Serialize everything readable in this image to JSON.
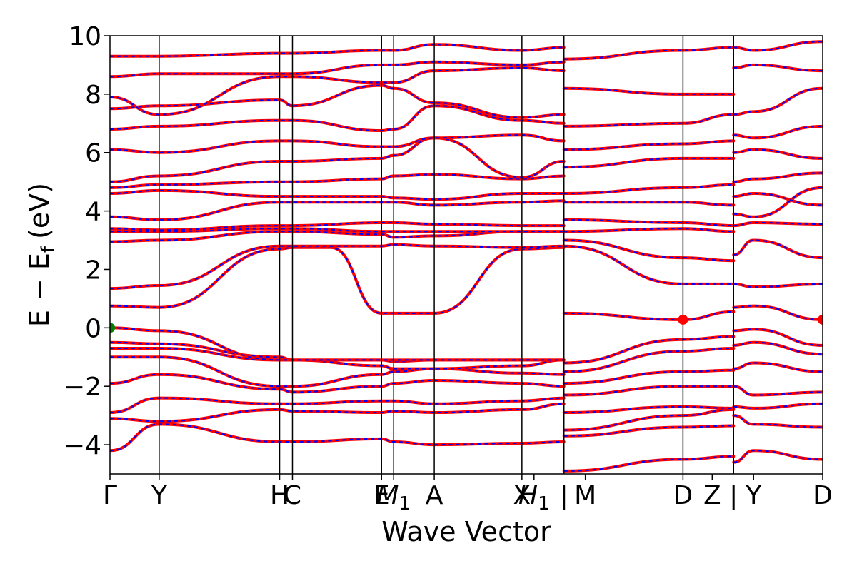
{
  "chart_data": {
    "type": "line",
    "title": "",
    "xlabel": "Wave Vector",
    "ylabel": "E − E",
    "ylabel_subscript": "f",
    "ylabel_unit": "(eV)",
    "ylim": [
      -5,
      10
    ],
    "y_ticks": [
      -4,
      -2,
      0,
      2,
      4,
      6,
      8,
      10
    ],
    "y_tick_labels": [
      "−4",
      "−2",
      "0",
      "2",
      "4",
      "6",
      "8",
      "10"
    ],
    "x_ticks": [
      {
        "label": "Γ",
        "pos": 0.0
      },
      {
        "label": "Y",
        "pos": 0.069
      },
      {
        "label": "H",
        "pos": 0.238
      },
      {
        "label": "C",
        "pos": 0.256
      },
      {
        "label": "E",
        "pos": 0.381
      },
      {
        "label": "M",
        "sub": "1",
        "pos": 0.398
      },
      {
        "label": "A",
        "pos": 0.455
      },
      {
        "label": "X",
        "pos": 0.578
      },
      {
        "label": "H",
        "sub": "1",
        "pos": 0.595
      },
      {
        "label": "|",
        "pos": 0.637
      },
      {
        "label": "M",
        "pos": 0.667
      },
      {
        "label": "D",
        "pos": 0.804
      },
      {
        "label": "Z",
        "pos": 0.845
      },
      {
        "label": "|",
        "pos": 0.875
      },
      {
        "label": "Y",
        "pos": 0.903
      },
      {
        "label": "D",
        "pos": 1.0
      }
    ],
    "band_dividers": [
      0.069,
      0.238,
      0.256,
      0.381,
      0.398,
      0.455,
      0.578,
      0.637,
      0.804,
      0.875
    ],
    "segment_breaks": [
      0.637,
      0.875
    ],
    "colors": {
      "spin_up": "#ff0000",
      "spin_down": "#0000ff",
      "vbm": "#008000",
      "cbm": "#ff0000",
      "divider": "#000000"
    },
    "markers": [
      {
        "type": "vbm",
        "x": 0.0,
        "y": 0.0
      },
      {
        "type": "cbm",
        "x": 0.804,
        "y": 0.28
      },
      {
        "type": "cbm",
        "x": 1.0,
        "y": 0.28
      }
    ],
    "series": [
      {
        "x": [
          0,
          0.069,
          0.238,
          0.256,
          0.381,
          0.398,
          0.455,
          0.578,
          0.637
        ],
        "y": [
          -4.2,
          -3.3,
          -3.9,
          -3.9,
          -3.8,
          -3.9,
          -4.0,
          -3.95,
          -3.9
        ]
      },
      {
        "x": [
          0,
          0.069,
          0.238,
          0.256,
          0.381,
          0.398,
          0.455,
          0.578,
          0.637
        ],
        "y": [
          -3.1,
          -3.2,
          -2.8,
          -2.85,
          -2.9,
          -2.85,
          -2.9,
          -2.8,
          -2.6
        ]
      },
      {
        "x": [
          0,
          0.069,
          0.238,
          0.256,
          0.381,
          0.398,
          0.455,
          0.578,
          0.637
        ],
        "y": [
          -2.9,
          -2.4,
          -2.6,
          -2.6,
          -2.5,
          -2.5,
          -2.6,
          -2.5,
          -2.4
        ]
      },
      {
        "x": [
          0,
          0.069,
          0.238,
          0.256,
          0.381,
          0.398,
          0.455,
          0.578,
          0.637
        ],
        "y": [
          -1.9,
          -1.6,
          -2.1,
          -2.2,
          -2.0,
          -1.9,
          -1.8,
          -1.9,
          -2.0
        ]
      },
      {
        "x": [
          0,
          0.069,
          0.238,
          0.256,
          0.381,
          0.398,
          0.455,
          0.578,
          0.637
        ],
        "y": [
          -1.0,
          -1.0,
          -2.0,
          -2.0,
          -1.6,
          -1.5,
          -1.4,
          -1.55,
          -1.6
        ]
      },
      {
        "x": [
          0,
          0.069,
          0.238,
          0.256,
          0.381,
          0.398,
          0.455,
          0.578,
          0.637
        ],
        "y": [
          -0.7,
          -0.7,
          -1.1,
          -1.1,
          -1.1,
          -1.15,
          -1.1,
          -1.1,
          -1.1
        ]
      },
      {
        "x": [
          0,
          0.069,
          0.238,
          0.256,
          0.381,
          0.398,
          0.455,
          0.578,
          0.637
        ],
        "y": [
          -0.5,
          -0.55,
          -1.0,
          -1.1,
          -1.3,
          -1.4,
          -1.4,
          -1.3,
          -1.1
        ]
      },
      {
        "x": [
          0,
          0.069,
          0.238,
          0.256,
          0.381,
          0.398,
          0.455,
          0.578,
          0.637
        ],
        "y": [
          0.0,
          -0.1,
          -1.1,
          -1.1,
          -1.1,
          -1.1,
          -1.1,
          -1.1,
          -1.1
        ]
      },
      {
        "x": [
          0,
          0.069,
          0.238,
          0.256,
          0.31,
          0.381,
          0.398,
          0.455,
          0.578,
          0.637
        ],
        "y": [
          0.75,
          0.7,
          2.7,
          2.75,
          2.75,
          0.5,
          0.5,
          0.5,
          2.7,
          2.75
        ]
      },
      {
        "x": [
          0,
          0.069,
          0.238,
          0.256,
          0.381,
          0.398,
          0.455,
          0.578,
          0.637
        ],
        "y": [
          1.35,
          1.45,
          2.8,
          2.8,
          2.8,
          2.85,
          2.8,
          2.75,
          2.8
        ]
      },
      {
        "x": [
          0,
          0.069,
          0.238,
          0.256,
          0.381,
          0.398,
          0.455,
          0.578,
          0.637
        ],
        "y": [
          2.95,
          3.0,
          3.3,
          3.3,
          3.2,
          3.1,
          3.15,
          3.3,
          3.3
        ]
      },
      {
        "x": [
          0,
          0.069,
          0.238,
          0.256,
          0.381,
          0.398,
          0.455,
          0.578,
          0.637
        ],
        "y": [
          3.3,
          3.3,
          3.4,
          3.4,
          3.3,
          3.3,
          3.3,
          3.3,
          3.3
        ]
      },
      {
        "x": [
          0,
          0.069,
          0.238,
          0.256,
          0.381,
          0.398,
          0.455,
          0.578,
          0.637
        ],
        "y": [
          3.4,
          3.35,
          3.5,
          3.5,
          3.6,
          3.6,
          3.55,
          3.5,
          3.5
        ]
      },
      {
        "x": [
          0,
          0.069,
          0.238,
          0.256,
          0.381,
          0.398,
          0.455,
          0.578,
          0.637
        ],
        "y": [
          3.8,
          3.7,
          4.3,
          4.3,
          4.3,
          4.3,
          4.2,
          4.3,
          4.35
        ]
      },
      {
        "x": [
          0,
          0.069,
          0.238,
          0.256,
          0.381,
          0.398,
          0.455,
          0.578,
          0.637
        ],
        "y": [
          4.6,
          4.7,
          4.5,
          4.5,
          4.5,
          4.45,
          4.4,
          4.6,
          4.6
        ]
      },
      {
        "x": [
          0,
          0.069,
          0.238,
          0.256,
          0.381,
          0.398,
          0.455,
          0.578,
          0.637
        ],
        "y": [
          4.8,
          4.9,
          5.0,
          5.0,
          5.1,
          5.2,
          5.25,
          5.1,
          5.2
        ]
      },
      {
        "x": [
          0,
          0.069,
          0.238,
          0.256,
          0.381,
          0.398,
          0.455,
          0.578,
          0.637
        ],
        "y": [
          5.0,
          5.2,
          5.7,
          5.7,
          5.8,
          5.9,
          6.5,
          5.15,
          5.7
        ]
      },
      {
        "x": [
          0,
          0.069,
          0.238,
          0.256,
          0.381,
          0.398,
          0.455,
          0.578,
          0.637
        ],
        "y": [
          6.1,
          6.0,
          6.4,
          6.4,
          6.2,
          6.2,
          6.5,
          6.6,
          6.4
        ]
      },
      {
        "x": [
          0,
          0.069,
          0.238,
          0.256,
          0.381,
          0.398,
          0.455,
          0.578,
          0.637
        ],
        "y": [
          6.8,
          6.9,
          7.1,
          7.1,
          6.75,
          6.8,
          7.6,
          7.1,
          7.0
        ]
      },
      {
        "x": [
          0,
          0.069,
          0.238,
          0.256,
          0.381,
          0.398,
          0.455,
          0.578,
          0.637
        ],
        "y": [
          7.5,
          7.6,
          7.8,
          7.6,
          8.3,
          8.2,
          7.7,
          7.2,
          7.3
        ]
      },
      {
        "x": [
          0,
          0.069,
          0.238,
          0.256,
          0.381,
          0.398,
          0.455,
          0.578,
          0.637
        ],
        "y": [
          7.9,
          7.3,
          8.6,
          8.6,
          8.4,
          8.4,
          8.8,
          8.9,
          8.8
        ]
      },
      {
        "x": [
          0,
          0.069,
          0.238,
          0.256,
          0.381,
          0.398,
          0.455,
          0.578,
          0.637
        ],
        "y": [
          8.6,
          8.7,
          8.7,
          8.7,
          9.0,
          9.0,
          9.1,
          9.0,
          9.1
        ]
      },
      {
        "x": [
          0,
          0.069,
          0.238,
          0.256,
          0.381,
          0.398,
          0.455,
          0.578,
          0.637
        ],
        "y": [
          9.3,
          9.3,
          9.4,
          9.4,
          9.5,
          9.5,
          9.7,
          9.5,
          9.6
        ]
      },
      {
        "x": [
          0.637,
          0.804,
          0.875
        ],
        "y": [
          -4.9,
          -4.5,
          -4.4
        ]
      },
      {
        "x": [
          0.637,
          0.804,
          0.875
        ],
        "y": [
          -3.7,
          -3.4,
          -3.35
        ]
      },
      {
        "x": [
          0.637,
          0.804,
          0.875
        ],
        "y": [
          -3.5,
          -3.0,
          -2.8
        ]
      },
      {
        "x": [
          0.637,
          0.804,
          0.875
        ],
        "y": [
          -2.9,
          -2.7,
          -2.75
        ]
      },
      {
        "x": [
          0.637,
          0.804,
          0.875
        ],
        "y": [
          -2.3,
          -2.0,
          -2.0
        ]
      },
      {
        "x": [
          0.637,
          0.804,
          0.875
        ],
        "y": [
          -1.9,
          -1.5,
          -1.45
        ]
      },
      {
        "x": [
          0.637,
          0.804,
          0.875
        ],
        "y": [
          -1.5,
          -0.8,
          -0.7
        ]
      },
      {
        "x": [
          0.637,
          0.804,
          0.875
        ],
        "y": [
          -1.2,
          -0.4,
          -0.3
        ]
      },
      {
        "x": [
          0.637,
          0.804,
          0.875
        ],
        "y": [
          0.5,
          0.28,
          0.55
        ]
      },
      {
        "x": [
          0.637,
          0.804,
          0.875
        ],
        "y": [
          2.8,
          1.5,
          1.5
        ]
      },
      {
        "x": [
          0.637,
          0.804,
          0.875
        ],
        "y": [
          3.0,
          2.4,
          2.3
        ]
      },
      {
        "x": [
          0.637,
          0.804,
          0.875
        ],
        "y": [
          3.3,
          3.4,
          3.3
        ]
      },
      {
        "x": [
          0.637,
          0.804,
          0.875
        ],
        "y": [
          3.7,
          3.6,
          3.5
        ]
      },
      {
        "x": [
          0.637,
          0.804,
          0.875
        ],
        "y": [
          4.3,
          4.3,
          4.2
        ]
      },
      {
        "x": [
          0.637,
          0.804,
          0.875
        ],
        "y": [
          4.6,
          4.8,
          4.9
        ]
      },
      {
        "x": [
          0.637,
          0.804,
          0.875
        ],
        "y": [
          5.5,
          5.8,
          5.8
        ]
      },
      {
        "x": [
          0.637,
          0.804,
          0.875
        ],
        "y": [
          6.1,
          6.3,
          6.4
        ]
      },
      {
        "x": [
          0.637,
          0.804,
          0.875
        ],
        "y": [
          6.9,
          7.0,
          7.3
        ]
      },
      {
        "x": [
          0.637,
          0.804,
          0.875
        ],
        "y": [
          8.2,
          8.0,
          8.0
        ]
      },
      {
        "x": [
          0.637,
          0.804,
          0.875
        ],
        "y": [
          9.2,
          9.5,
          9.6
        ]
      },
      {
        "x": [
          0.875,
          0.903,
          1.0
        ],
        "y": [
          -4.6,
          -4.2,
          -4.5
        ]
      },
      {
        "x": [
          0.875,
          0.903,
          1.0
        ],
        "y": [
          -3.0,
          -3.3,
          -3.4
        ]
      },
      {
        "x": [
          0.875,
          0.903,
          1.0
        ],
        "y": [
          -2.7,
          -2.75,
          -2.6
        ]
      },
      {
        "x": [
          0.875,
          0.903,
          1.0
        ],
        "y": [
          -2.0,
          -2.3,
          -2.2
        ]
      },
      {
        "x": [
          0.875,
          0.903,
          1.0
        ],
        "y": [
          -1.4,
          -1.2,
          -1.5
        ]
      },
      {
        "x": [
          0.875,
          0.903,
          1.0
        ],
        "y": [
          -0.6,
          -0.5,
          -0.9
        ]
      },
      {
        "x": [
          0.875,
          0.903,
          1.0
        ],
        "y": [
          -0.1,
          -0.05,
          -0.6
        ]
      },
      {
        "x": [
          0.875,
          0.903,
          1.0
        ],
        "y": [
          0.7,
          0.75,
          0.28
        ]
      },
      {
        "x": [
          0.875,
          0.903,
          1.0
        ],
        "y": [
          1.5,
          1.4,
          1.5
        ]
      },
      {
        "x": [
          0.875,
          0.903,
          1.0
        ],
        "y": [
          2.5,
          3.0,
          2.4
        ]
      },
      {
        "x": [
          0.875,
          0.903,
          1.0
        ],
        "y": [
          3.5,
          3.6,
          3.55
        ]
      },
      {
        "x": [
          0.875,
          0.903,
          1.0
        ],
        "y": [
          3.9,
          3.8,
          4.8
        ]
      },
      {
        "x": [
          0.875,
          0.903,
          1.0
        ],
        "y": [
          4.5,
          4.6,
          4.2
        ]
      },
      {
        "x": [
          0.875,
          0.903,
          1.0
        ],
        "y": [
          5.0,
          5.1,
          5.3
        ]
      },
      {
        "x": [
          0.875,
          0.903,
          1.0
        ],
        "y": [
          6.0,
          6.1,
          5.8
        ]
      },
      {
        "x": [
          0.875,
          0.903,
          1.0
        ],
        "y": [
          6.6,
          6.5,
          6.9
        ]
      },
      {
        "x": [
          0.875,
          0.903,
          1.0
        ],
        "y": [
          7.3,
          7.4,
          8.2
        ]
      },
      {
        "x": [
          0.875,
          0.903,
          1.0
        ],
        "y": [
          8.9,
          9.0,
          8.8
        ]
      },
      {
        "x": [
          0.875,
          0.903,
          1.0
        ],
        "y": [
          9.6,
          9.5,
          9.8
        ]
      }
    ]
  }
}
